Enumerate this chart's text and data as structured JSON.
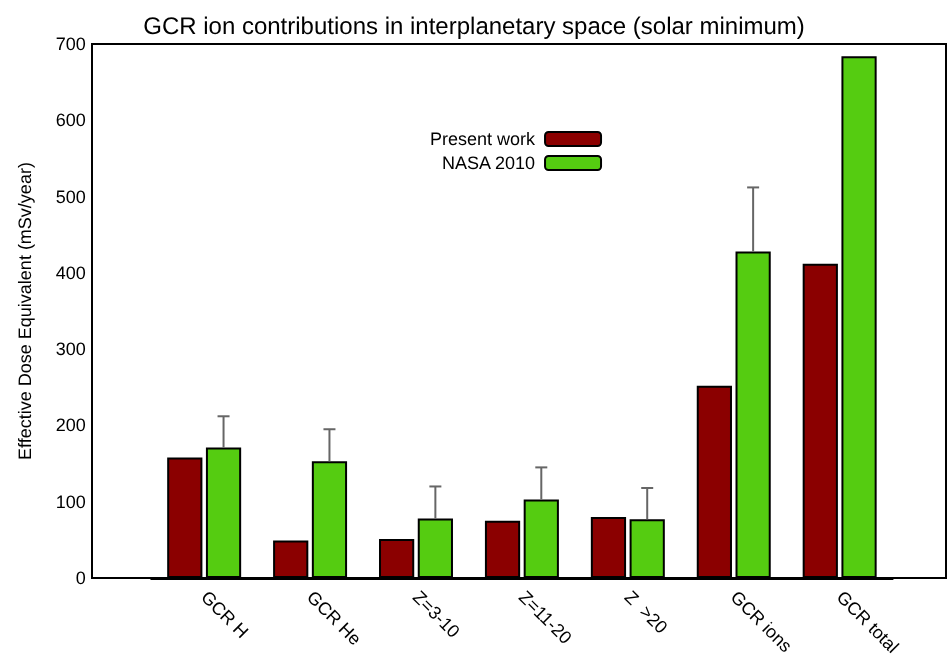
{
  "chart_data": {
    "type": "bar",
    "title": "GCR ion contributions in interplanetary space (solar minimum)",
    "ylabel": "Effective Dose Equivalent (mSv/year)",
    "categories": [
      "GCR H",
      "GCR He",
      "Z=3-10",
      "Z=11-20",
      "Z  >20",
      "GCR ions",
      "GCR total"
    ],
    "series": [
      {
        "name": "Present work",
        "color": "#8b0000",
        "values": [
          158,
          49,
          51,
          75,
          80,
          252,
          412
        ]
      },
      {
        "name": "NASA 2010",
        "color": "#55cc11",
        "values": [
          171,
          153,
          78,
          103,
          77,
          428,
          684
        ],
        "errors": [
          [
            171,
            212
          ],
          [
            153,
            195
          ],
          [
            78,
            120
          ],
          [
            103,
            145
          ],
          [
            77,
            118
          ],
          [
            428,
            512
          ],
          null
        ]
      }
    ],
    "ylim": [
      0,
      700
    ],
    "yticks": [
      0,
      100,
      200,
      300,
      400,
      500,
      600,
      700
    ],
    "legend": "top"
  }
}
